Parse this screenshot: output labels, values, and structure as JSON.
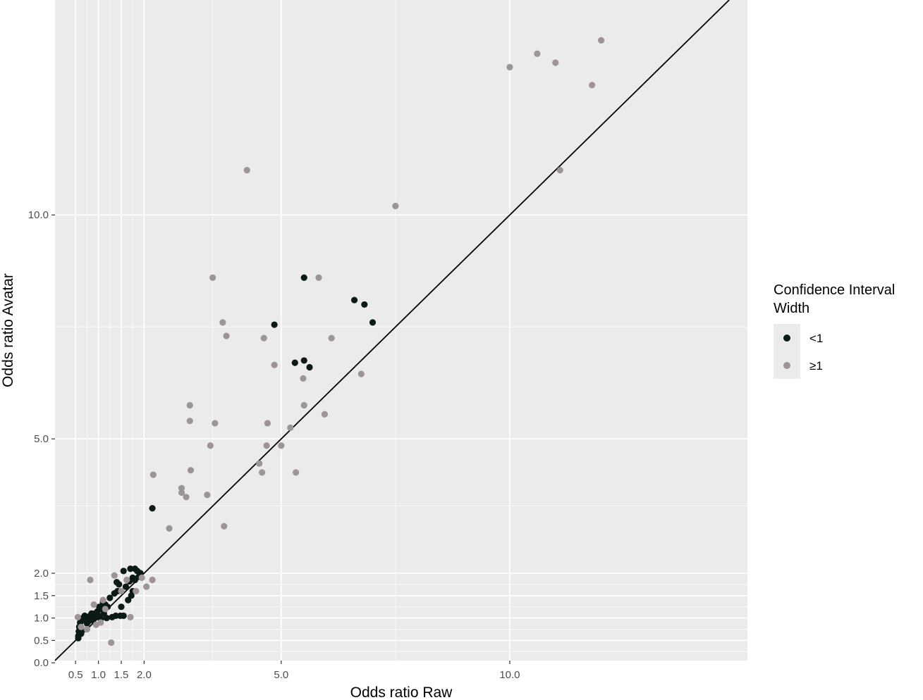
{
  "chart_data": {
    "type": "scatter",
    "xlabel": "Odds ratio Raw",
    "ylabel": "Odds ratio Avatar",
    "xlim": [
      0.05,
      15.2
    ],
    "ylim": [
      0.05,
      14.8
    ],
    "x_ticks": [
      {
        "value": 0.5,
        "label": "0.5"
      },
      {
        "value": 1.0,
        "label": "1.0"
      },
      {
        "value": 1.5,
        "label": "1.5"
      },
      {
        "value": 2.0,
        "label": "2.0"
      },
      {
        "value": 5.0,
        "label": "5.0"
      },
      {
        "value": 10.0,
        "label": "10.0"
      }
    ],
    "y_ticks": [
      {
        "value": 0.0,
        "label": "0.0"
      },
      {
        "value": 0.5,
        "label": "0.5"
      },
      {
        "value": 1.0,
        "label": "1.0"
      },
      {
        "value": 1.5,
        "label": "1.5"
      },
      {
        "value": 2.0,
        "label": "2.0"
      },
      {
        "value": 5.0,
        "label": "5.0"
      },
      {
        "value": 10.0,
        "label": "10.0"
      }
    ],
    "reference_line": {
      "slope": 1,
      "intercept": 0
    },
    "grid": true,
    "legend": {
      "title_lines": [
        "Confidence Interval",
        "Width"
      ],
      "placement": "right",
      "entries": [
        {
          "label": "<1",
          "color": "#0b1a14"
        },
        {
          "label": "≥1",
          "color": "#9c9495"
        }
      ]
    },
    "series": [
      {
        "name": "<1",
        "color": "#0b1a14",
        "points": [
          [
            0.56,
            0.55
          ],
          [
            0.56,
            0.6
          ],
          [
            0.57,
            0.7
          ],
          [
            0.58,
            0.8
          ],
          [
            0.6,
            0.9
          ],
          [
            0.62,
            0.65
          ],
          [
            0.63,
            0.7
          ],
          [
            0.65,
            0.95
          ],
          [
            0.66,
            1.0
          ],
          [
            0.7,
            1.05
          ],
          [
            0.72,
            1.02
          ],
          [
            0.75,
            0.88
          ],
          [
            0.78,
            0.92
          ],
          [
            0.8,
            1.0
          ],
          [
            0.82,
            1.05
          ],
          [
            0.85,
            1.1
          ],
          [
            0.88,
            0.95
          ],
          [
            0.9,
            1.0
          ],
          [
            0.92,
            1.1
          ],
          [
            0.95,
            1.02
          ],
          [
            0.98,
            1.15
          ],
          [
            1.0,
            1.05
          ],
          [
            1.02,
            1.25
          ],
          [
            1.05,
            0.98
          ],
          [
            1.08,
            1.2
          ],
          [
            1.1,
            1.35
          ],
          [
            1.12,
            1.1
          ],
          [
            1.15,
            1.3
          ],
          [
            1.18,
            1.0
          ],
          [
            1.2,
            1.25
          ],
          [
            1.25,
            1.45
          ],
          [
            1.3,
            1.02
          ],
          [
            1.35,
            1.55
          ],
          [
            1.38,
            1.05
          ],
          [
            1.4,
            1.8
          ],
          [
            1.42,
            1.6
          ],
          [
            1.45,
            1.75
          ],
          [
            1.48,
            1.05
          ],
          [
            1.5,
            1.25
          ],
          [
            1.55,
            1.05
          ],
          [
            1.55,
            2.05
          ],
          [
            1.6,
            1.7
          ],
          [
            1.65,
            1.4
          ],
          [
            1.68,
            1.82
          ],
          [
            1.7,
            2.1
          ],
          [
            1.72,
            1.5
          ],
          [
            1.75,
            1.6
          ],
          [
            1.75,
            1.9
          ],
          [
            1.8,
            2.1
          ],
          [
            1.8,
            1.85
          ],
          [
            1.85,
            2.05
          ],
          [
            1.88,
            1.92
          ],
          [
            1.92,
            2.0
          ],
          [
            2.18,
            3.45
          ],
          [
            4.85,
            7.55
          ],
          [
            5.3,
            6.7
          ],
          [
            5.5,
            6.75
          ],
          [
            5.5,
            8.6
          ],
          [
            5.62,
            6.6
          ],
          [
            6.6,
            8.1
          ],
          [
            6.82,
            8.0
          ],
          [
            7.0,
            7.6
          ]
        ]
      },
      {
        "name": "≥1",
        "color": "#9c9495",
        "points": [
          [
            0.55,
            1.02
          ],
          [
            0.62,
            0.8
          ],
          [
            0.75,
            0.75
          ],
          [
            0.82,
            1.85
          ],
          [
            0.9,
            1.3
          ],
          [
            0.95,
            0.85
          ],
          [
            1.05,
            0.9
          ],
          [
            1.1,
            1.4
          ],
          [
            1.15,
            1.2
          ],
          [
            1.28,
            0.45
          ],
          [
            1.35,
            1.95
          ],
          [
            1.5,
            1.6
          ],
          [
            1.62,
            1.85
          ],
          [
            1.7,
            1.02
          ],
          [
            1.82,
            1.6
          ],
          [
            1.95,
            1.9
          ],
          [
            2.05,
            1.7
          ],
          [
            2.18,
            1.85
          ],
          [
            2.2,
            4.2
          ],
          [
            2.55,
            3.0
          ],
          [
            2.82,
            3.9
          ],
          [
            2.82,
            3.8
          ],
          [
            2.92,
            3.7
          ],
          [
            3.0,
            5.75
          ],
          [
            3.0,
            5.4
          ],
          [
            3.02,
            4.3
          ],
          [
            3.38,
            3.75
          ],
          [
            3.45,
            4.85
          ],
          [
            3.5,
            8.6
          ],
          [
            3.55,
            5.35
          ],
          [
            3.72,
            7.6
          ],
          [
            3.75,
            3.05
          ],
          [
            3.8,
            7.3
          ],
          [
            4.25,
            11.0
          ],
          [
            4.52,
            4.45
          ],
          [
            4.58,
            4.25
          ],
          [
            4.62,
            7.25
          ],
          [
            4.68,
            4.85
          ],
          [
            4.7,
            5.35
          ],
          [
            4.85,
            6.65
          ],
          [
            5.0,
            4.85
          ],
          [
            5.2,
            5.25
          ],
          [
            5.32,
            4.25
          ],
          [
            5.48,
            6.35
          ],
          [
            5.5,
            5.75
          ],
          [
            5.82,
            8.6
          ],
          [
            5.95,
            5.55
          ],
          [
            6.1,
            7.25
          ],
          [
            6.75,
            6.45
          ],
          [
            7.5,
            10.2
          ],
          [
            10.0,
            13.3
          ],
          [
            10.6,
            13.6
          ],
          [
            11.0,
            13.4
          ],
          [
            11.1,
            11.0
          ],
          [
            11.8,
            12.9
          ],
          [
            12.0,
            13.9
          ]
        ]
      }
    ]
  }
}
